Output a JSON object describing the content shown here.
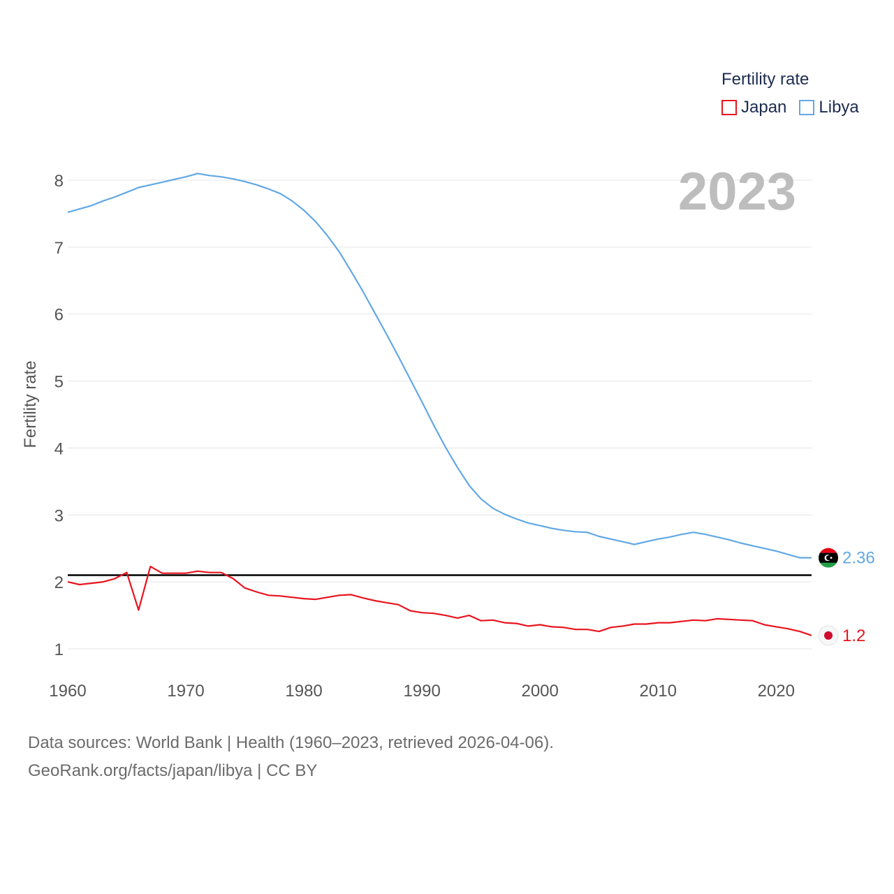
{
  "chart_data": {
    "type": "line",
    "ylabel": "Fertility rate",
    "xlabel": "",
    "year_label": "2023",
    "xlim": [
      1960,
      2023
    ],
    "ylim": [
      0.5,
      8.5
    ],
    "x_ticks": [
      1960,
      1970,
      1980,
      1990,
      2000,
      2010,
      2020
    ],
    "y_ticks": [
      1,
      2,
      3,
      4,
      5,
      6,
      7,
      8
    ],
    "reference_line": 2.1,
    "x": [
      1960,
      1961,
      1962,
      1963,
      1964,
      1965,
      1966,
      1967,
      1968,
      1969,
      1970,
      1971,
      1972,
      1973,
      1974,
      1975,
      1976,
      1977,
      1978,
      1979,
      1980,
      1981,
      1982,
      1983,
      1984,
      1985,
      1986,
      1987,
      1988,
      1989,
      1990,
      1991,
      1992,
      1993,
      1994,
      1995,
      1996,
      1997,
      1998,
      1999,
      2000,
      2001,
      2002,
      2003,
      2004,
      2005,
      2006,
      2007,
      2008,
      2009,
      2010,
      2011,
      2012,
      2013,
      2014,
      2015,
      2016,
      2017,
      2018,
      2019,
      2020,
      2021,
      2022,
      2023
    ],
    "series": [
      {
        "name": "Japan",
        "color": "#e8141e",
        "end_label": "1.2",
        "values": [
          2.0,
          1.96,
          1.98,
          2.0,
          2.05,
          2.14,
          1.58,
          2.23,
          2.13,
          2.13,
          2.13,
          2.16,
          2.14,
          2.14,
          2.05,
          1.91,
          1.85,
          1.8,
          1.79,
          1.77,
          1.75,
          1.74,
          1.77,
          1.8,
          1.81,
          1.76,
          1.72,
          1.69,
          1.66,
          1.57,
          1.54,
          1.53,
          1.5,
          1.46,
          1.5,
          1.42,
          1.43,
          1.39,
          1.38,
          1.34,
          1.36,
          1.33,
          1.32,
          1.29,
          1.29,
          1.26,
          1.32,
          1.34,
          1.37,
          1.37,
          1.39,
          1.39,
          1.41,
          1.43,
          1.42,
          1.45,
          1.44,
          1.43,
          1.42,
          1.36,
          1.33,
          1.3,
          1.26,
          1.2
        ]
      },
      {
        "name": "Libya",
        "color": "#62a8e5",
        "end_label": "2.36",
        "values": [
          7.52,
          7.57,
          7.62,
          7.69,
          7.75,
          7.82,
          7.89,
          7.93,
          7.97,
          8.01,
          8.05,
          8.1,
          8.07,
          8.05,
          8.02,
          7.98,
          7.93,
          7.87,
          7.8,
          7.69,
          7.55,
          7.38,
          7.17,
          6.93,
          6.64,
          6.34,
          6.02,
          5.7,
          5.37,
          5.03,
          4.69,
          4.34,
          4.01,
          3.71,
          3.44,
          3.24,
          3.1,
          3.01,
          2.94,
          2.88,
          2.84,
          2.8,
          2.77,
          2.75,
          2.74,
          2.68,
          2.64,
          2.6,
          2.56,
          2.6,
          2.64,
          2.67,
          2.71,
          2.74,
          2.71,
          2.67,
          2.63,
          2.58,
          2.54,
          2.5,
          2.46,
          2.41,
          2.36,
          2.36
        ]
      }
    ]
  },
  "legend": {
    "title": "Fertility rate",
    "items": [
      {
        "label": "Japan",
        "color": "#e8141e"
      },
      {
        "label": "Libya",
        "color": "#62a8e5"
      }
    ]
  },
  "sources": {
    "line1": "Data sources: World Bank | Health (1960–2023, retrieved 2026-04-06).",
    "line2": "GeoRank.org/facts/japan/libya | CC BY"
  },
  "flags": {
    "japan": "japan-flag-icon",
    "libya": "libya-flag-icon"
  }
}
